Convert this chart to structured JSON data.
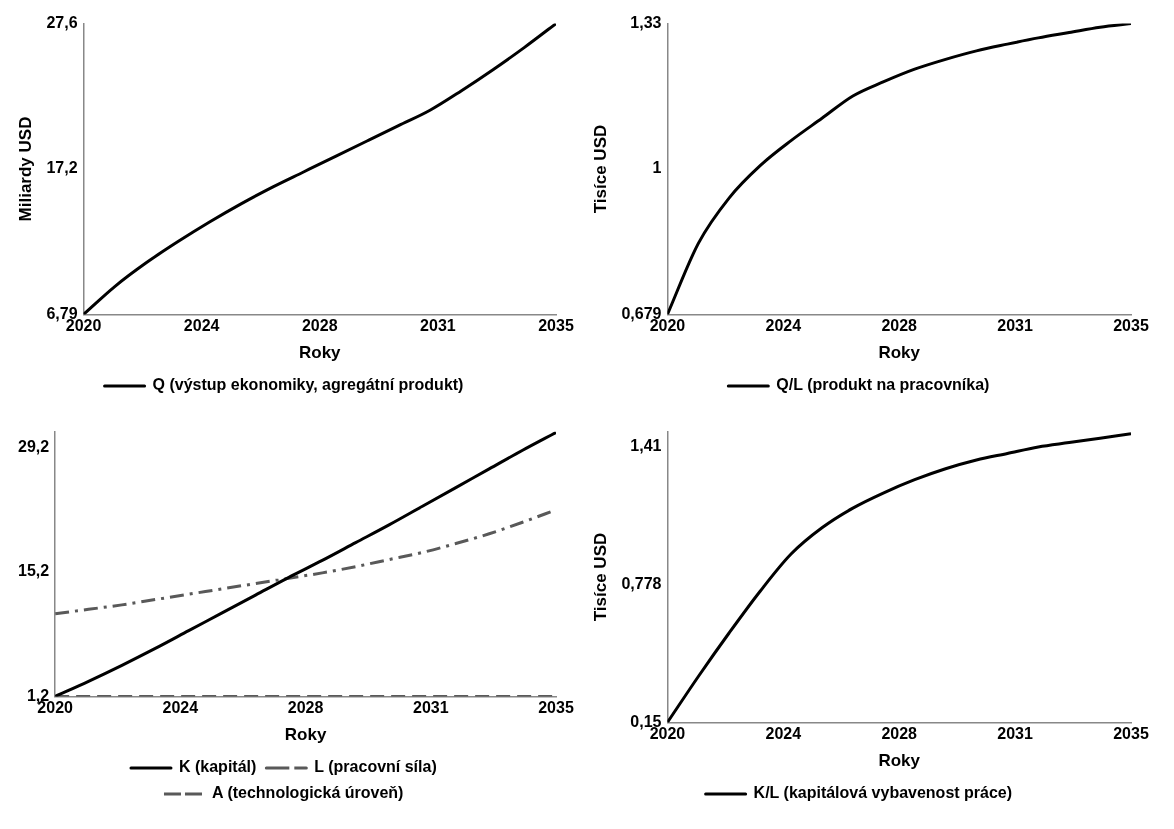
{
  "chart_data": [
    {
      "type": "line",
      "xlabel": "Roky",
      "ylabel": "Miliardy USD",
      "x": [
        2020,
        2021,
        2022,
        2023,
        2024,
        2025,
        2026,
        2027,
        2028,
        2029,
        2030,
        2031,
        2032,
        2033,
        2034,
        2035
      ],
      "xlim": [
        2020,
        2035
      ],
      "xticks": [
        {
          "value": 2020,
          "label": "2020"
        },
        {
          "value": 2023.75,
          "label": "2024"
        },
        {
          "value": 2027.5,
          "label": "2028"
        },
        {
          "value": 2031.25,
          "label": "2031"
        },
        {
          "value": 2035,
          "label": "2035"
        }
      ],
      "ylim": [
        6.79,
        27.6
      ],
      "yticks": [
        {
          "value": 6.79,
          "label": "6,79"
        },
        {
          "value": 17.2,
          "label": "17,2"
        },
        {
          "value": 27.6,
          "label": "27,6"
        }
      ],
      "grid": false,
      "legend": "bottom",
      "marker": "none",
      "series": [
        {
          "name": "Q (výstup ekonomiky, agregátní produkt)",
          "color": "#000000",
          "line_style": "solid",
          "values": [
            6.79,
            8.8,
            10.5,
            12.0,
            13.4,
            14.7,
            15.9,
            17.0,
            18.1,
            19.2,
            20.3,
            21.4,
            22.8,
            24.3,
            25.9,
            27.6
          ]
        }
      ]
    },
    {
      "type": "line",
      "xlabel": "Roky",
      "ylabel": "Tisíce USD",
      "x": [
        2020,
        2021,
        2022,
        2023,
        2024,
        2025,
        2026,
        2027,
        2028,
        2029,
        2030,
        2031,
        2032,
        2033,
        2034,
        2035
      ],
      "xlim": [
        2020,
        2035
      ],
      "xticks": [
        {
          "value": 2020,
          "label": "2020"
        },
        {
          "value": 2023.75,
          "label": "2024"
        },
        {
          "value": 2027.5,
          "label": "2028"
        },
        {
          "value": 2031.25,
          "label": "2031"
        },
        {
          "value": 2035,
          "label": "2035"
        }
      ],
      "ylim": [
        0.679,
        1.33
      ],
      "yticks": [
        {
          "value": 0.679,
          "label": "0,679"
        },
        {
          "value": 1.0045,
          "label": "1"
        },
        {
          "value": 1.33,
          "label": "1,33"
        }
      ],
      "grid": false,
      "legend": "bottom",
      "marker": "none",
      "series": [
        {
          "name": "Q/L (produkt na pracovníka)",
          "color": "#000000",
          "line_style": "solid",
          "values": [
            0.679,
            0.838,
            0.94,
            1.012,
            1.068,
            1.118,
            1.168,
            1.2,
            1.228,
            1.25,
            1.269,
            1.284,
            1.298,
            1.31,
            1.322,
            1.33
          ]
        }
      ]
    },
    {
      "type": "line",
      "xlabel": "Roky",
      "x": [
        2020,
        2021,
        2022,
        2023,
        2024,
        2025,
        2026,
        2027,
        2028,
        2029,
        2030,
        2031,
        2032,
        2033,
        2034,
        2035
      ],
      "xlim": [
        2020,
        2035
      ],
      "xticks": [
        {
          "value": 2020,
          "label": "2020"
        },
        {
          "value": 2023.75,
          "label": "2024"
        },
        {
          "value": 2027.5,
          "label": "2028"
        },
        {
          "value": 2031.25,
          "label": "2031"
        },
        {
          "value": 2035,
          "label": "2035"
        }
      ],
      "ylim": [
        1.2,
        31
      ],
      "yticks": [
        {
          "value": 1.2,
          "label": "1,2"
        },
        {
          "value": 15.2,
          "label": "15,2"
        },
        {
          "value": 29.2,
          "label": "29,2"
        }
      ],
      "grid": false,
      "legend": "bottom",
      "marker": "none",
      "series": [
        {
          "name": "K (kapitál)",
          "color": "#000000",
          "line_style": "solid",
          "values": [
            1.2,
            2.9,
            4.7,
            6.6,
            8.6,
            10.6,
            12.6,
            14.6,
            16.5,
            18.5,
            20.5,
            22.6,
            24.7,
            26.8,
            28.9,
            30.9
          ]
        },
        {
          "name": "L (pracovní síla)",
          "color": "#595959",
          "line_style": "dashdot",
          "values": [
            10.5,
            11.0,
            11.5,
            12.1,
            12.7,
            13.3,
            13.9,
            14.5,
            15.1,
            15.8,
            16.6,
            17.4,
            18.4,
            19.5,
            20.8,
            22.2
          ]
        },
        {
          "name": "A (technologická úroveň)",
          "color": "#595959",
          "line_style": "dashed",
          "values": [
            1.2,
            1.2,
            1.2,
            1.2,
            1.2,
            1.2,
            1.2,
            1.2,
            1.2,
            1.2,
            1.2,
            1.2,
            1.2,
            1.2,
            1.2,
            1.2
          ]
        }
      ]
    },
    {
      "type": "line",
      "xlabel": "Roky",
      "ylabel": "Tisíce USD",
      "x": [
        2020,
        2021,
        2022,
        2023,
        2024,
        2025,
        2026,
        2027,
        2028,
        2029,
        2030,
        2031,
        2032,
        2033,
        2034,
        2035
      ],
      "xlim": [
        2020,
        2035
      ],
      "xticks": [
        {
          "value": 2020,
          "label": "2020"
        },
        {
          "value": 2023.75,
          "label": "2024"
        },
        {
          "value": 2027.5,
          "label": "2028"
        },
        {
          "value": 2031.25,
          "label": "2031"
        },
        {
          "value": 2035,
          "label": "2035"
        }
      ],
      "ylim": [
        0.15,
        1.48
      ],
      "yticks": [
        {
          "value": 0.15,
          "label": "0,15"
        },
        {
          "value": 0.778,
          "label": "0,778"
        },
        {
          "value": 1.41,
          "label": "1,41"
        }
      ],
      "grid": false,
      "legend": "bottom",
      "marker": "none",
      "series": [
        {
          "name": "K/L (kapitálová vybavenost práce)",
          "color": "#000000",
          "line_style": "solid",
          "values": [
            0.15,
            0.36,
            0.56,
            0.75,
            0.92,
            1.04,
            1.13,
            1.2,
            1.26,
            1.31,
            1.35,
            1.38,
            1.41,
            1.43,
            1.45,
            1.47
          ]
        }
      ]
    }
  ]
}
